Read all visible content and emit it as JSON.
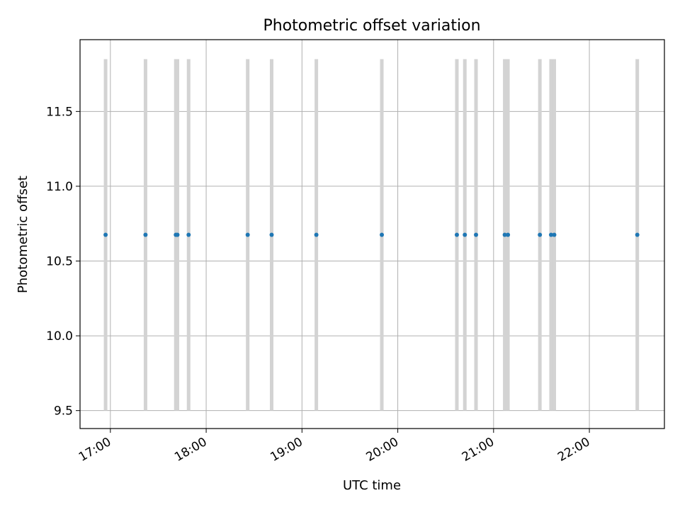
{
  "chart_data": {
    "type": "scatter",
    "title": "Photometric offset variation",
    "xlabel": "UTC time",
    "ylabel": "Photometric offset",
    "x_ticks": [
      "17:00",
      "18:00",
      "19:00",
      "20:00",
      "21:00",
      "22:00"
    ],
    "y_ticks": [
      "9.5",
      "10.0",
      "10.5",
      "11.0",
      "11.5"
    ],
    "xlim": [
      "16:41",
      "22:47"
    ],
    "ylim": [
      9.38,
      11.98
    ],
    "grid": true,
    "point_color": "#1f77b4",
    "errorbar_color": "#d3d3d3",
    "series": [
      {
        "x": [
          "16:57",
          "17:22",
          "17:41",
          "17:42",
          "17:49",
          "18:26",
          "18:41",
          "19:09",
          "19:50",
          "20:37",
          "20:42",
          "20:49",
          "21:07",
          "21:09",
          "21:29",
          "21:36",
          "21:38",
          "22:30"
        ],
        "y": [
          10.675,
          10.675,
          10.675,
          10.675,
          10.675,
          10.675,
          10.675,
          10.675,
          10.675,
          10.675,
          10.675,
          10.675,
          10.675,
          10.675,
          10.675,
          10.675,
          10.675,
          10.675
        ],
        "y_low": [
          9.5,
          9.5,
          9.5,
          9.5,
          9.5,
          9.5,
          9.5,
          9.5,
          9.5,
          9.5,
          9.5,
          9.5,
          9.5,
          9.5,
          9.5,
          9.5,
          9.5,
          9.5
        ],
        "y_high": [
          11.85,
          11.85,
          11.85,
          11.85,
          11.85,
          11.85,
          11.85,
          11.85,
          11.85,
          11.85,
          11.85,
          11.85,
          11.85,
          11.85,
          11.85,
          11.85,
          11.85,
          11.85
        ]
      }
    ]
  }
}
